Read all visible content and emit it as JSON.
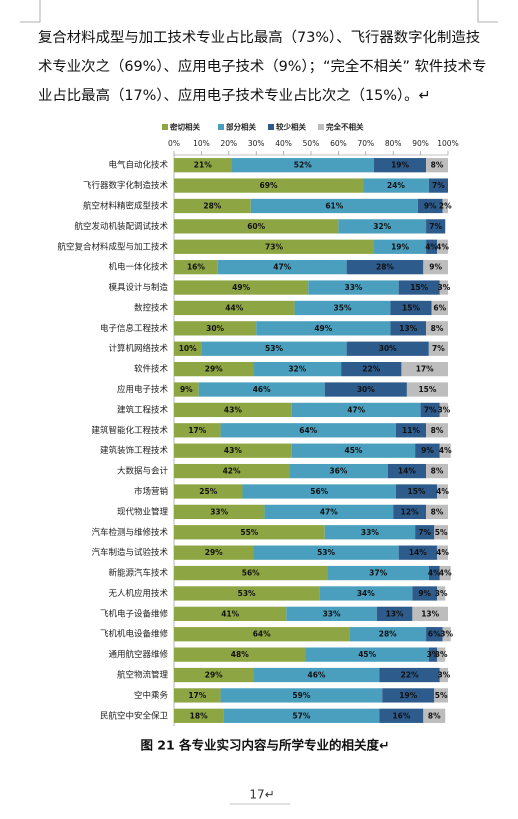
{
  "paragraph": {
    "lines": [
      "复合材料成型与加工技术专业占比最高（73%）、飞行器数字化制造技",
      "术专业次之（69%）、应用电子技术（9%）；“完全不相关” 软件技术专",
      "业占比最高（17%）、应用电子技术专业占比次之（15%）。↵"
    ]
  },
  "chart_data": {
    "type": "stacked-bar-horizontal",
    "categories": [
      "电气自动化技术",
      "飞行器数字化制造技术",
      "航空材料精密成型技术",
      "航空发动机装配调试技术",
      "航空复合材料成型与加工技术",
      "机电一体化技术",
      "模具设计与制造",
      "数控技术",
      "电子信息工程技术",
      "计算机网络技术",
      "软件技术",
      "应用电子技术",
      "建筑工程技术",
      "建筑智能化工程技术",
      "建筑装饰工程技术",
      "大数据与会计",
      "市场营销",
      "现代物业管理",
      "汽车检测与维修技术",
      "汽车制造与试验技术",
      "新能源汽车技术",
      "无人机应用技术",
      "飞机电子设备维修",
      "飞机机电设备维修",
      "通用航空器维修",
      "航空物流管理",
      "空中乘务",
      "民航空中安全保卫"
    ],
    "series": [
      {
        "name": "密切相关",
        "color": "#8ea543",
        "values": [
          21,
          69,
          28,
          60,
          73,
          16,
          49,
          44,
          30,
          10,
          29,
          9,
          43,
          17,
          43,
          42,
          25,
          33,
          55,
          29,
          56,
          53,
          41,
          64,
          48,
          29,
          17,
          18
        ],
        "value_labels": [
          "21%",
          "69%",
          "28%",
          "60%",
          "73%",
          "16%",
          "49%",
          "44%",
          "30%",
          "10%",
          "29%",
          "9%",
          "43%",
          "17%",
          "43%",
          "42%",
          "25%",
          "33%",
          "55%",
          "29%",
          "56%",
          "53%",
          "41%",
          "64%",
          "48%",
          "29%",
          "17%",
          "18%"
        ]
      },
      {
        "name": "部分相关",
        "color": "#4a9fbe",
        "values": [
          52,
          24,
          61,
          32,
          19,
          47,
          33,
          35,
          49,
          53,
          32,
          46,
          47,
          64,
          45,
          36,
          56,
          47,
          33,
          53,
          37,
          34,
          33,
          28,
          45,
          46,
          59,
          57
        ],
        "value_labels": [
          "52%",
          "24%",
          "61%",
          "32%",
          "19%",
          "47%",
          "33%",
          "35%",
          "49%",
          "53%",
          "32%",
          "46%",
          "47%",
          "64%",
          "45%",
          "36%",
          "56%",
          "47%",
          "33%",
          "53%",
          "37%",
          "34%",
          "33%",
          "28%",
          "45%",
          "46%",
          "59%",
          "57%"
        ]
      },
      {
        "name": "较少相关",
        "color": "#2d5b8c",
        "values": [
          19,
          7,
          9,
          7,
          4,
          28,
          15,
          15,
          13,
          30,
          22,
          30,
          7,
          11,
          9,
          14,
          15,
          12,
          7,
          14,
          4,
          9,
          13,
          6,
          3,
          22,
          19,
          16
        ],
        "value_labels": [
          "19%",
          "7%",
          "9%",
          "7%",
          "4%",
          "28%",
          "15%",
          "15%",
          "13%",
          "30%",
          "22%",
          "30%",
          "7%",
          "11%",
          "9%",
          "14%",
          "15%",
          "12%",
          "7%",
          "14%",
          "4%",
          "9%",
          "13%",
          "6%",
          "3%",
          "22%",
          "19%",
          "16%"
        ]
      },
      {
        "name": "完全不相关",
        "color": "#bdbdbd",
        "values": [
          8,
          null,
          2,
          null,
          4,
          9,
          3,
          6,
          8,
          7,
          17,
          15,
          3,
          8,
          4,
          8,
          4,
          8,
          5,
          4,
          4,
          3,
          13,
          3,
          3,
          3,
          5,
          8
        ],
        "value_labels": [
          "8%",
          null,
          "2%",
          null,
          "4%",
          "9%",
          "3%",
          "6%",
          "8%",
          "7%",
          "17%",
          "15%",
          "3%",
          "8%",
          "4%",
          "8%",
          "4%",
          "8%",
          "5%",
          "4%",
          "4%",
          "3%",
          "13%",
          "3%",
          "3%",
          "3%",
          "5%",
          "8%"
        ]
      }
    ],
    "xlim": [
      0,
      100
    ],
    "xticks": [
      {
        "value": 0,
        "label": "0%"
      },
      {
        "value": 10,
        "label": "10%"
      },
      {
        "value": 20,
        "label": "20%"
      },
      {
        "value": 30,
        "label": "30%"
      },
      {
        "value": 40,
        "label": "40%"
      },
      {
        "value": 50,
        "label": "50%"
      },
      {
        "value": 60,
        "label": "60%"
      },
      {
        "value": 70,
        "label": "70%"
      },
      {
        "value": 80,
        "label": "80%"
      },
      {
        "value": 90,
        "label": "90%"
      },
      {
        "value": 100,
        "label": "100%"
      }
    ],
    "legend": "top"
  },
  "caption": "图 21  各专业实习内容与所学专业的相关度↵",
  "page_number": "17↵"
}
